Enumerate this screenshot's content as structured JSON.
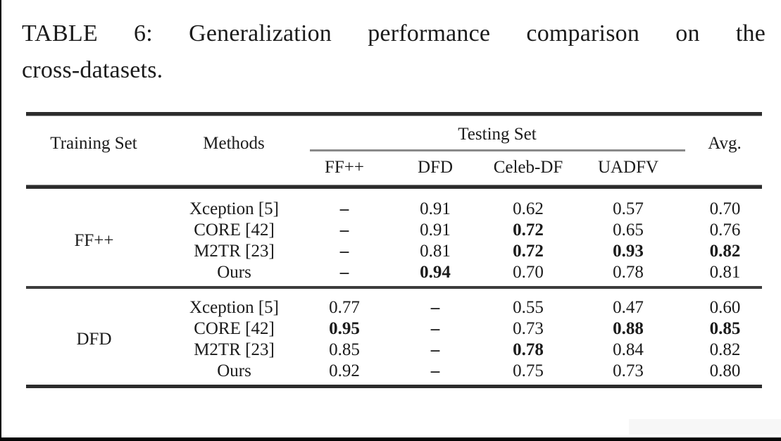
{
  "caption": {
    "line1": "TABLE 6: Generalization performance comparison on the",
    "line2": "cross-datasets."
  },
  "table": {
    "header": {
      "training_set": "Training Set",
      "methods": "Methods",
      "testing_set": "Testing Set",
      "avg": "Avg.",
      "sub_columns": [
        "FF++",
        "DFD",
        "Celeb-DF",
        "UADFV"
      ]
    },
    "blocks": [
      {
        "training_set": "FF++",
        "rows": [
          {
            "method": "Xception [5]",
            "values": [
              "–",
              "0.91",
              "0.62",
              "0.57",
              "0.70"
            ],
            "weights": [
              "bold",
              "normal",
              "normal",
              "normal",
              "normal"
            ]
          },
          {
            "method": "CORE [42]",
            "values": [
              "–",
              "0.91",
              "0.72",
              "0.65",
              "0.76"
            ],
            "weights": [
              "bold",
              "normal",
              "bold",
              "normal",
              "normal"
            ]
          },
          {
            "method": "M2TR [23]",
            "values": [
              "–",
              "0.81",
              "0.72",
              "0.93",
              "0.82"
            ],
            "weights": [
              "bold",
              "normal",
              "bold",
              "bold",
              "bold"
            ]
          },
          {
            "method": "Ours",
            "values": [
              "–",
              "0.94",
              "0.70",
              "0.78",
              "0.81"
            ],
            "weights": [
              "bold",
              "bold",
              "normal",
              "normal",
              "normal"
            ]
          }
        ]
      },
      {
        "training_set": "DFD",
        "rows": [
          {
            "method": "Xception [5]",
            "values": [
              "0.77",
              "–",
              "0.55",
              "0.47",
              "0.60"
            ],
            "weights": [
              "normal",
              "bold",
              "normal",
              "normal",
              "normal"
            ]
          },
          {
            "method": "CORE [42]",
            "values": [
              "0.95",
              "–",
              "0.73",
              "0.88",
              "0.85"
            ],
            "weights": [
              "bold",
              "bold",
              "normal",
              "bold",
              "bold"
            ]
          },
          {
            "method": "M2TR [23]",
            "values": [
              "0.85",
              "–",
              "0.78",
              "0.84",
              "0.82"
            ],
            "weights": [
              "normal",
              "bold",
              "bold",
              "normal",
              "normal"
            ]
          },
          {
            "method": "Ours",
            "values": [
              "0.92",
              "–",
              "0.75",
              "0.73",
              "0.80"
            ],
            "weights": [
              "normal",
              "bold",
              "normal",
              "normal",
              "normal"
            ]
          }
        ]
      }
    ]
  }
}
